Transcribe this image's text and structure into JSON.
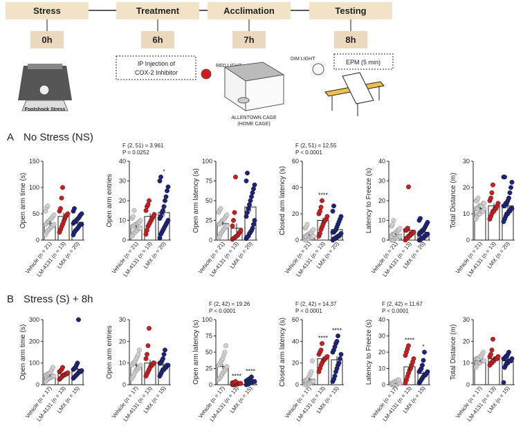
{
  "timeline": {
    "stages": [
      {
        "label": "Stress",
        "time": "0h"
      },
      {
        "label": "Treatment",
        "time": "6h"
      },
      {
        "label": "Acclimation",
        "time": "7h"
      },
      {
        "label": "Testing",
        "time": "8h"
      }
    ],
    "footshock": "Footshock Stress",
    "injection": [
      "IP Injection of",
      "COX-2 Inhibitor"
    ],
    "red_light": "RED LIGHT",
    "cage": [
      "ALLENTOWN CAGE",
      "(HOME CAGE)"
    ],
    "dim_light": "DIM LIGHT",
    "epm": "EPM (5 min)"
  },
  "rows": [
    {
      "letter": "A",
      "title": "No Stress (NS)"
    },
    {
      "letter": "B",
      "title": "Stress (S) + 8h"
    }
  ],
  "chart_data": [
    {
      "type": "bar",
      "ylabel": "Open arm time (s)",
      "ylim": [
        0,
        150
      ],
      "yticks": [
        0,
        50,
        100,
        150
      ],
      "categories": [
        "Vehicle (n = 21)",
        "LM-4131 (n = 13)",
        "LMX (n = 20)"
      ],
      "colors": [
        "#cfcfcf",
        "#d7191c",
        "#1a237e"
      ],
      "values": [
        32,
        45,
        34
      ],
      "errors": [
        4,
        7,
        4
      ],
      "points": [
        [
          10,
          15,
          18,
          20,
          22,
          25,
          25,
          28,
          30,
          30,
          32,
          35,
          35,
          38,
          40,
          42,
          45,
          48,
          55,
          62,
          65
        ],
        [
          15,
          20,
          25,
          30,
          35,
          40,
          45,
          48,
          50,
          55,
          60,
          80,
          100
        ],
        [
          10,
          15,
          18,
          20,
          22,
          25,
          28,
          30,
          30,
          32,
          35,
          35,
          38,
          40,
          42,
          45,
          48,
          50,
          55,
          60
        ]
      ]
    },
    {
      "type": "bar",
      "ylabel": "Open arm entries",
      "ylim": [
        0,
        40
      ],
      "yticks": [
        0,
        10,
        20,
        30,
        40
      ],
      "categories": [
        "Vehicle (n = 21)",
        "LM-4131 (n = 13)",
        "LMX (n = 20)"
      ],
      "colors": [
        "#cfcfcf",
        "#d7191c",
        "#1a237e"
      ],
      "values": [
        7,
        12,
        14
      ],
      "errors": [
        0.7,
        1.5,
        2
      ],
      "stats": [
        "F (2, 51) = 3.961",
        "P = 0.0252"
      ],
      "stars": [
        null,
        null,
        "*"
      ],
      "points": [
        [
          2,
          3,
          4,
          4,
          5,
          5,
          6,
          6,
          6,
          7,
          7,
          7,
          8,
          8,
          8,
          9,
          9,
          10,
          11,
          12,
          15
        ],
        [
          3,
          5,
          7,
          8,
          9,
          10,
          11,
          12,
          13,
          15,
          17,
          18,
          20
        ],
        [
          1,
          3,
          4,
          5,
          6,
          7,
          8,
          9,
          10,
          11,
          12,
          14,
          15,
          17,
          20,
          22,
          25,
          27,
          30,
          32
        ]
      ]
    },
    {
      "type": "bar",
      "ylabel": "Open arm latency (s)",
      "ylim": [
        0,
        100
      ],
      "yticks": [
        0,
        25,
        50,
        75,
        100
      ],
      "categories": [
        "Vehicle (n = 21)",
        "LM-4131 (n = 13)",
        "LMX (n = 20)"
      ],
      "colors": [
        "#cfcfcf",
        "#d7191c",
        "#1a237e"
      ],
      "values": [
        21,
        15,
        42
      ],
      "errors": [
        2.5,
        6,
        6
      ],
      "points": [
        [
          3,
          5,
          8,
          10,
          12,
          14,
          15,
          17,
          18,
          20,
          20,
          22,
          24,
          25,
          26,
          28,
          30,
          32,
          35,
          38,
          40
        ],
        [
          1,
          2,
          3,
          4,
          5,
          6,
          8,
          10,
          12,
          18,
          25,
          35,
          80
        ],
        [
          2,
          4,
          5,
          8,
          10,
          12,
          15,
          20,
          25,
          30,
          35,
          40,
          45,
          50,
          55,
          60,
          65,
          70,
          75,
          85
        ]
      ]
    },
    {
      "type": "bar",
      "ylabel": "Closed arm latency (s)",
      "ylim": [
        0,
        60
      ],
      "yticks": [
        0,
        20,
        40,
        60
      ],
      "categories": [
        "Vehicle (n = 21)",
        "LM-4131 (n = 13)",
        "LMX (n = 20)"
      ],
      "colors": [
        "#cfcfcf",
        "#d7191c",
        "#1a237e"
      ],
      "values": [
        4,
        15,
        8
      ],
      "errors": [
        0.7,
        2,
        1.7
      ],
      "stats": [
        "F (2, 51) = 12.55",
        "P < 0.0001"
      ],
      "stars": [
        null,
        "****",
        null
      ],
      "points": [
        [
          0,
          0,
          1,
          1,
          1,
          2,
          2,
          2,
          3,
          3,
          3,
          4,
          4,
          5,
          5,
          6,
          7,
          8,
          9,
          10,
          12
        ],
        [
          3,
          5,
          8,
          10,
          12,
          14,
          15,
          16,
          18,
          20,
          22,
          25,
          30
        ],
        [
          0,
          1,
          1,
          2,
          2,
          3,
          3,
          4,
          5,
          6,
          6,
          7,
          8,
          10,
          12,
          14,
          16,
          18,
          22,
          26
        ]
      ]
    },
    {
      "type": "bar",
      "ylabel": "Latency to Freeze (s)",
      "ylim": [
        0,
        40
      ],
      "yticks": [
        0,
        10,
        20,
        30,
        40
      ],
      "categories": [
        "Vehicle (n = 21)",
        "LM-4131 (n = 13)",
        "LMX (n = 20)"
      ],
      "colors": [
        "#cfcfcf",
        "#d7191c",
        "#1a237e"
      ],
      "values": [
        3,
        5,
        4
      ],
      "errors": [
        0.6,
        2,
        0.7
      ],
      "points": [
        [
          0,
          0,
          0,
          1,
          1,
          1,
          1,
          2,
          2,
          2,
          3,
          3,
          3,
          4,
          4,
          5,
          5,
          6,
          7,
          8,
          10
        ],
        [
          0,
          1,
          1,
          2,
          2,
          3,
          3,
          4,
          4,
          5,
          5,
          6,
          27
        ],
        [
          0,
          0,
          1,
          1,
          1,
          2,
          2,
          3,
          3,
          3,
          4,
          4,
          5,
          5,
          6,
          7,
          8,
          9,
          10,
          11
        ]
      ]
    },
    {
      "type": "bar",
      "ylabel": "Total Distance (m)",
      "ylim": [
        0,
        30
      ],
      "yticks": [
        0,
        10,
        20,
        30
      ],
      "categories": [
        "Vehicle (n = 21)",
        "LM-4131 (n = 13)",
        "LMX (n = 20)"
      ],
      "colors": [
        "#cfcfcf",
        "#d7191c",
        "#1a237e"
      ],
      "values": [
        12,
        13,
        13
      ],
      "errors": [
        0.5,
        1,
        1.2
      ],
      "points": [
        [
          8,
          9,
          10,
          10,
          10,
          11,
          11,
          11,
          12,
          12,
          12,
          12,
          13,
          13,
          13,
          13,
          14,
          14,
          15,
          15,
          16
        ],
        [
          8,
          9,
          10,
          11,
          11,
          12,
          12,
          13,
          14,
          15,
          16,
          18,
          21
        ],
        [
          7,
          8,
          9,
          10,
          10,
          11,
          11,
          12,
          12,
          13,
          13,
          14,
          14,
          15,
          16,
          18,
          20,
          22,
          24,
          24
        ]
      ]
    },
    {
      "type": "bar",
      "ylabel": "Open arm time (s)",
      "ylim": [
        0,
        300
      ],
      "yticks": [
        0,
        100,
        200,
        300
      ],
      "categories": [
        "Vehicle (n = 17)",
        "LM-4131 (n = 13)",
        "LMX (n = 15)"
      ],
      "colors": [
        "#cfcfcf",
        "#d7191c",
        "#1a237e"
      ],
      "values": [
        42,
        50,
        72
      ],
      "errors": [
        5,
        5,
        17
      ],
      "points": [
        [
          15,
          20,
          25,
          30,
          30,
          35,
          35,
          40,
          40,
          45,
          45,
          50,
          50,
          55,
          60,
          70,
          80
        ],
        [
          25,
          30,
          35,
          40,
          45,
          45,
          50,
          50,
          55,
          60,
          65,
          70,
          80
        ],
        [
          30,
          35,
          40,
          45,
          50,
          55,
          60,
          60,
          65,
          70,
          75,
          80,
          90,
          100,
          300
        ]
      ]
    },
    {
      "type": "bar",
      "ylabel": "Open arm entries",
      "ylim": [
        0,
        30
      ],
      "yticks": [
        0,
        10,
        20,
        30
      ],
      "categories": [
        "Vehicle (n = 17)",
        "LM-4131 (n = 13)",
        "LMX (n = 15)"
      ],
      "colors": [
        "#cfcfcf",
        "#d7191c",
        "#1a237e"
      ],
      "values": [
        9,
        10,
        9
      ],
      "errors": [
        0.9,
        1.6,
        0.9
      ],
      "points": [
        [
          3,
          4,
          5,
          6,
          7,
          7,
          8,
          8,
          9,
          9,
          10,
          10,
          11,
          12,
          13,
          14,
          16
        ],
        [
          4,
          5,
          6,
          7,
          8,
          9,
          9,
          10,
          10,
          12,
          14,
          18,
          26
        ],
        [
          4,
          5,
          6,
          7,
          7,
          8,
          8,
          9,
          9,
          10,
          10,
          11,
          12,
          14,
          16
        ]
      ]
    },
    {
      "type": "bar",
      "ylabel": "Open arm latency (s)",
      "ylim": [
        0,
        100
      ],
      "yticks": [
        0,
        25,
        50,
        75,
        100
      ],
      "categories": [
        "Vehicle (n = 17)",
        "LM-4131 (n = 13)",
        "LMX (n = 15)"
      ],
      "colors": [
        "#cfcfcf",
        "#d7191c",
        "#1a237e"
      ],
      "values": [
        28,
        2,
        5
      ],
      "errors": [
        3.5,
        0.5,
        1
      ],
      "stats": [
        "F (2, 42) = 19.26",
        "P < 0.0001"
      ],
      "stars": [
        null,
        "****",
        "****"
      ],
      "points": [
        [
          8,
          10,
          12,
          15,
          18,
          20,
          22,
          25,
          28,
          30,
          32,
          35,
          38,
          40,
          45,
          50,
          60
        ],
        [
          0,
          0,
          0,
          1,
          1,
          1,
          2,
          2,
          2,
          3,
          3,
          4,
          5
        ],
        [
          0,
          1,
          1,
          2,
          3,
          3,
          4,
          5,
          5,
          6,
          7,
          8,
          9,
          10,
          12
        ]
      ]
    },
    {
      "type": "bar",
      "ylabel": "Closed arm latency (s)",
      "ylim": [
        0,
        60
      ],
      "yticks": [
        0,
        20,
        40,
        60
      ],
      "categories": [
        "Vehicle (n = 17)",
        "LM-4131 (n = 13)",
        "LMX (n = 15)"
      ],
      "colors": [
        "#cfcfcf",
        "#d7191c",
        "#1a237e"
      ],
      "values": [
        5,
        24,
        23
      ],
      "errors": [
        1.4,
        2,
        3.5
      ],
      "stats": [
        "F (2, 42) = 14.37",
        "P < 0.0001"
      ],
      "stars": [
        null,
        "****",
        "****"
      ],
      "points": [
        [
          0,
          0,
          1,
          1,
          1,
          2,
          2,
          3,
          3,
          4,
          4,
          5,
          6,
          8,
          10,
          12,
          22
        ],
        [
          12,
          15,
          18,
          20,
          22,
          23,
          24,
          25,
          26,
          28,
          30,
          32,
          38
        ],
        [
          3,
          5,
          8,
          12,
          15,
          18,
          20,
          24,
          28,
          30,
          32,
          35,
          38,
          40,
          45
        ]
      ]
    },
    {
      "type": "bar",
      "ylabel": "Latency to Freeze (s)",
      "ylim": [
        0,
        40
      ],
      "yticks": [
        0,
        10,
        20,
        30,
        40
      ],
      "categories": [
        "Vehicle (n = 17)",
        "LM-4131 (n = 13)",
        "LMX (n = 15)"
      ],
      "colors": [
        "#cfcfcf",
        "#d7191c",
        "#1a237e"
      ],
      "values": [
        1,
        11,
        7
      ],
      "errors": [
        0.3,
        2,
        1.3
      ],
      "stats": [
        "F (2, 42) = 11.67",
        "P < 0.0001"
      ],
      "stars": [
        null,
        "****",
        "*"
      ],
      "points": [
        [
          0,
          0,
          0,
          0,
          0,
          0,
          1,
          1,
          1,
          1,
          1,
          1,
          2,
          2,
          2,
          3,
          3
        ],
        [
          1,
          3,
          5,
          7,
          9,
          10,
          12,
          14,
          16,
          18,
          20,
          22,
          24
        ],
        [
          1,
          2,
          3,
          4,
          5,
          6,
          6,
          7,
          8,
          8,
          9,
          10,
          12,
          15,
          20
        ]
      ]
    },
    {
      "type": "bar",
      "ylabel": "Total Distance (m)",
      "ylim": [
        0,
        30
      ],
      "yticks": [
        0,
        10,
        20,
        30
      ],
      "categories": [
        "Vehicle (n = 17)",
        "LM-4131 (n = 13)",
        "LMX (n = 15)"
      ],
      "colors": [
        "#cfcfcf",
        "#d7191c",
        "#1a237e"
      ],
      "values": [
        11,
        12,
        11
      ],
      "errors": [
        0.5,
        0.9,
        0.9
      ],
      "points": [
        [
          8,
          9,
          10,
          10,
          10,
          11,
          11,
          11,
          11,
          12,
          12,
          12,
          12,
          13,
          13,
          14,
          15
        ],
        [
          9,
          10,
          10,
          11,
          11,
          12,
          12,
          12,
          13,
          13,
          14,
          16,
          21
        ],
        [
          1,
          8,
          9,
          10,
          10,
          11,
          11,
          11,
          12,
          12,
          12,
          13,
          13,
          14,
          15
        ]
      ]
    }
  ]
}
